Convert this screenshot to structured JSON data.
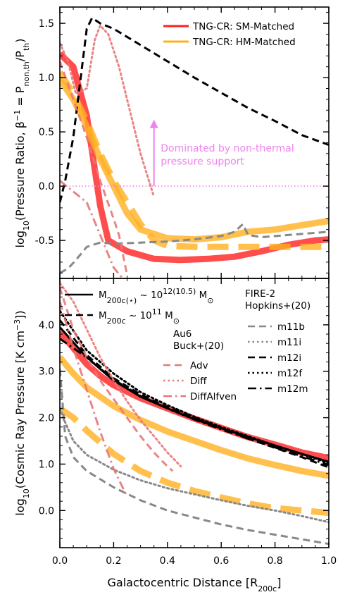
{
  "chart_data": [
    {
      "type": "line",
      "panel": "top",
      "xlabel": "",
      "ylabel": "log$_{10}$(Pressure Ratio, $\\beta^{-1}$ = P$_{\\rm non,th}$/P$_{\\rm th}$)",
      "ylabel_parts": [
        "log",
        "10",
        "(Pressure Ratio, ",
        "β",
        "−1",
        " = P",
        "non,th",
        "/P",
        "th",
        ")"
      ],
      "xlim": [
        0,
        1.0
      ],
      "ylim": [
        -0.85,
        1.65
      ],
      "yticks": [
        -0.5,
        0.0,
        0.5,
        1.0,
        1.5
      ],
      "ytick_labels": [
        "-0.5",
        "0.0",
        "0.5",
        "1.0",
        "1.5"
      ],
      "annotation": {
        "lines": [
          "Dominated by non-thermal",
          "pressure support"
        ],
        "color": "#ee82ee",
        "arrow_x": 0.35,
        "arrow_y": [
          0.0,
          0.6
        ],
        "text_x": 0.375,
        "text_y": [
          0.32,
          0.2
        ]
      },
      "reference_line": {
        "y": 0.0,
        "color": "#ee82ee",
        "style": "dotted"
      },
      "legend": {
        "placement": "top-right",
        "entries": [
          {
            "label": "TNG-CR: SM-Matched",
            "color": "#ff2020"
          },
          {
            "label": "TNG-CR: HM-Matched",
            "color": "#ffb020"
          }
        ]
      },
      "series": [
        {
          "name": "",
          "color": "#ff2020",
          "opacity": 0.8,
          "width": 9,
          "style": "solid",
          "x": [
            0.0,
            0.05,
            0.1,
            0.15,
            0.18,
            0.25,
            0.35,
            0.45,
            0.55,
            0.65,
            0.75,
            0.85,
            0.95,
            1.0
          ],
          "y": [
            1.22,
            1.1,
            0.65,
            -0.18,
            -0.5,
            -0.6,
            -0.67,
            -0.68,
            -0.67,
            -0.65,
            -0.6,
            -0.54,
            -0.5,
            -0.49
          ]
        },
        {
          "name": "",
          "color": "#ffb020",
          "opacity": 0.8,
          "width": 9,
          "style": "solid",
          "x": [
            0.0,
            0.05,
            0.1,
            0.15,
            0.2,
            0.25,
            0.3,
            0.35,
            0.4,
            0.5,
            0.6,
            0.7,
            0.8,
            0.9,
            1.0
          ],
          "y": [
            0.98,
            0.8,
            0.55,
            0.25,
            0.0,
            -0.25,
            -0.4,
            -0.44,
            -0.48,
            -0.49,
            -0.47,
            -0.42,
            -0.4,
            -0.36,
            -0.32
          ]
        },
        {
          "name": "",
          "color": "#ffb020",
          "opacity": 0.8,
          "width": 9,
          "style": "dashed",
          "x": [
            0.0,
            0.05,
            0.1,
            0.15,
            0.2,
            0.25,
            0.3,
            0.35,
            0.4,
            0.5,
            0.6,
            0.7,
            0.8,
            0.9,
            1.0
          ],
          "y": [
            1.05,
            0.85,
            0.6,
            0.3,
            0.05,
            -0.15,
            -0.35,
            -0.5,
            -0.55,
            -0.56,
            -0.56,
            -0.56,
            -0.56,
            -0.56,
            -0.56
          ]
        },
        {
          "name": "",
          "color": "#000000",
          "opacity": 1.0,
          "width": 3,
          "style": "dashed",
          "x": [
            0.0,
            0.02,
            0.05,
            0.08,
            0.1,
            0.12,
            0.15,
            0.2,
            0.3,
            0.4,
            0.5,
            0.6,
            0.7,
            0.8,
            0.9,
            1.0
          ],
          "y": [
            -0.15,
            0.05,
            0.45,
            1.05,
            1.45,
            1.55,
            1.5,
            1.45,
            1.3,
            1.15,
            1.0,
            0.86,
            0.72,
            0.6,
            0.47,
            0.38
          ]
        },
        {
          "name": "",
          "color": "#888888",
          "opacity": 1.0,
          "width": 3,
          "style": "dashed",
          "x": [
            0.0,
            0.03,
            0.06,
            0.1,
            0.15,
            0.2,
            0.3,
            0.4,
            0.5,
            0.6,
            0.65,
            0.68,
            0.7,
            0.75,
            0.85,
            1.0
          ],
          "y": [
            -0.8,
            -0.76,
            -0.68,
            -0.56,
            -0.52,
            -0.53,
            -0.52,
            -0.51,
            -0.49,
            -0.46,
            -0.42,
            -0.35,
            -0.45,
            -0.47,
            -0.45,
            -0.42
          ]
        },
        {
          "name": "",
          "color": "#e87878",
          "opacity": 0.9,
          "width": 3,
          "style": "dotted",
          "x": [
            0.0,
            0.03,
            0.06,
            0.1,
            0.13,
            0.15,
            0.18,
            0.22,
            0.26,
            0.3,
            0.35
          ],
          "y": [
            1.32,
            1.15,
            0.85,
            0.9,
            1.35,
            1.48,
            1.4,
            1.1,
            0.7,
            0.3,
            -0.1
          ]
        },
        {
          "name": "",
          "color": "#e87878",
          "opacity": 0.9,
          "width": 3,
          "style": "dashed",
          "x": [
            0.0,
            0.05,
            0.1,
            0.15,
            0.2,
            0.22,
            0.25
          ],
          "y": [
            1.15,
            0.8,
            0.45,
            0.05,
            -0.3,
            -0.45,
            -0.82
          ]
        },
        {
          "name": "",
          "color": "#e87878",
          "opacity": 0.9,
          "width": 3,
          "style": "dashdot",
          "x": [
            0.0,
            0.05,
            0.1,
            0.15,
            0.2,
            0.25
          ],
          "y": [
            0.05,
            -0.05,
            -0.15,
            -0.45,
            -0.75,
            -0.9
          ]
        }
      ]
    },
    {
      "type": "line",
      "panel": "bottom",
      "xlabel": "Galactocentric Distance [R$_{\\rm 200c}$]",
      "xlabel_parts": [
        "Galactocentric Distance [R",
        "200c",
        "]"
      ],
      "ylabel": "log$_{10}$(Cosmic Ray Pressure [K cm$^{-3}$])",
      "ylabel_parts": [
        "log",
        "10",
        "(Cosmic Ray Pressure [K cm",
        "−3",
        "])"
      ],
      "xlim": [
        0,
        1.0
      ],
      "ylim": [
        -0.8,
        5.0
      ],
      "xticks": [
        0.0,
        0.2,
        0.4,
        0.6,
        0.8,
        1.0
      ],
      "xtick_labels": [
        "0.0",
        "0.2",
        "0.4",
        "0.6",
        "0.8",
        "1.0"
      ],
      "yticks": [
        0.0,
        1.0,
        2.0,
        3.0,
        4.0
      ],
      "ytick_labels": [
        "0.0",
        "1.0",
        "2.0",
        "3.0",
        "4.0"
      ],
      "legend_mass": {
        "placement": "top-left",
        "entries": [
          {
            "style": "solid",
            "label_parts": [
              "M",
              "200c(⋆)",
              " ~ 10",
              "12(10.5)",
              " M",
              "⊙"
            ]
          },
          {
            "style": "dashed",
            "label_parts": [
              "M",
              "200c",
              " ~ 10",
              "11",
              " M",
              "⊙"
            ]
          }
        ]
      },
      "legend_au6": {
        "placement": "upper-center",
        "title": [
          "Au6",
          "Buck+(20)"
        ],
        "entries": [
          {
            "label": "Adv",
            "style": "dashed",
            "color": "#e87878"
          },
          {
            "label": "Diff",
            "style": "dotted",
            "color": "#e87878"
          },
          {
            "label": "DiffAlfven",
            "style": "dashdot",
            "color": "#e87878"
          }
        ]
      },
      "legend_fire": {
        "placement": "top-right",
        "title": [
          "FIRE-2",
          "Hopkins+(20)"
        ],
        "entries": [
          {
            "label": "m11b",
            "style": "dashed",
            "color": "#888888"
          },
          {
            "label": "m11i",
            "style": "dotted",
            "color": "#888888"
          },
          {
            "label": "m12i",
            "style": "dashed",
            "color": "#000000"
          },
          {
            "label": "m12f",
            "style": "dotted",
            "color": "#000000"
          },
          {
            "label": "m12m",
            "style": "dashdot",
            "color": "#000000"
          }
        ]
      },
      "series": [
        {
          "name": "",
          "color": "#ff2020",
          "opacity": 0.8,
          "width": 9,
          "style": "solid",
          "x": [
            0.0,
            0.05,
            0.1,
            0.15,
            0.2,
            0.3,
            0.4,
            0.5,
            0.6,
            0.7,
            0.8,
            0.9,
            1.0
          ],
          "y": [
            3.85,
            3.5,
            3.15,
            2.9,
            2.7,
            2.42,
            2.2,
            1.98,
            1.78,
            1.58,
            1.42,
            1.25,
            1.13
          ]
        },
        {
          "name": "",
          "color": "#ffb020",
          "opacity": 0.8,
          "width": 9,
          "style": "solid",
          "x": [
            0.0,
            0.05,
            0.1,
            0.2,
            0.3,
            0.4,
            0.5,
            0.6,
            0.7,
            0.8,
            0.9,
            1.0
          ],
          "y": [
            3.3,
            2.95,
            2.65,
            2.25,
            1.95,
            1.7,
            1.5,
            1.3,
            1.12,
            0.98,
            0.85,
            0.75
          ]
        },
        {
          "name": "",
          "color": "#ffb020",
          "opacity": 0.8,
          "width": 9,
          "style": "dashed",
          "x": [
            0.0,
            0.05,
            0.1,
            0.2,
            0.3,
            0.4,
            0.5,
            0.6,
            0.7,
            0.8,
            0.9,
            1.0
          ],
          "y": [
            2.2,
            2.0,
            1.72,
            1.22,
            0.85,
            0.6,
            0.42,
            0.28,
            0.15,
            0.05,
            0.0,
            -0.05
          ]
        },
        {
          "name": "",
          "color": "#000000",
          "opacity": 1.0,
          "width": 3,
          "style": "solid",
          "x": [
            0.0,
            0.1,
            0.2,
            0.3,
            0.4,
            0.5,
            0.6,
            0.7,
            0.8,
            0.9,
            1.0
          ],
          "y": [
            3.95,
            3.3,
            2.8,
            2.45,
            2.2,
            1.97,
            1.77,
            1.58,
            1.4,
            1.22,
            1.05
          ]
        },
        {
          "name": "",
          "color": "#000000",
          "opacity": 1.0,
          "width": 3,
          "style": "dashed",
          "x": [
            0.0,
            0.1,
            0.2,
            0.3,
            0.4,
            0.5,
            0.6,
            0.7,
            0.8,
            0.9,
            1.0
          ],
          "y": [
            4.1,
            3.35,
            2.85,
            2.5,
            2.23,
            2.0,
            1.78,
            1.55,
            1.35,
            1.15,
            0.93
          ]
        },
        {
          "name": "",
          "color": "#000000",
          "opacity": 1.0,
          "width": 3,
          "style": "dotted",
          "x": [
            0.0,
            0.1,
            0.2,
            0.3,
            0.4,
            0.5,
            0.6,
            0.7,
            0.8,
            0.9,
            1.0
          ],
          "y": [
            4.3,
            3.45,
            2.95,
            2.55,
            2.27,
            2.02,
            1.8,
            1.6,
            1.4,
            1.22,
            1.02
          ]
        },
        {
          "name": "",
          "color": "#000000",
          "opacity": 1.0,
          "width": 3,
          "style": "dashdot",
          "x": [
            0.0,
            0.1,
            0.2,
            0.3,
            0.4,
            0.5,
            0.6,
            0.7,
            0.8,
            0.9,
            1.0
          ],
          "y": [
            3.7,
            3.3,
            2.82,
            2.47,
            2.2,
            1.96,
            1.75,
            1.55,
            1.36,
            1.17,
            0.98
          ]
        },
        {
          "name": "",
          "color": "#888888",
          "opacity": 1.0,
          "width": 3,
          "style": "dashed",
          "x": [
            0.0,
            0.02,
            0.05,
            0.1,
            0.2,
            0.3,
            0.4,
            0.5,
            0.6,
            0.7,
            0.8,
            0.9,
            1.0
          ],
          "y": [
            3.05,
            1.6,
            1.15,
            0.85,
            0.5,
            0.22,
            0.0,
            -0.15,
            -0.3,
            -0.42,
            -0.52,
            -0.62,
            -0.72
          ]
        },
        {
          "name": "",
          "color": "#888888",
          "opacity": 1.0,
          "width": 3,
          "style": "dotted",
          "x": [
            0.0,
            0.02,
            0.05,
            0.1,
            0.2,
            0.3,
            0.4,
            0.5,
            0.6,
            0.7,
            0.8,
            0.9,
            1.0
          ],
          "y": [
            2.2,
            1.9,
            1.5,
            1.2,
            0.88,
            0.65,
            0.48,
            0.35,
            0.22,
            0.1,
            0.0,
            -0.12,
            -0.25
          ]
        },
        {
          "name": "",
          "color": "#e87878",
          "opacity": 0.9,
          "width": 3,
          "style": "dashed",
          "x": [
            0.0,
            0.05,
            0.1,
            0.15,
            0.2,
            0.25,
            0.3,
            0.35,
            0.4,
            0.42
          ],
          "y": [
            4.8,
            3.9,
            3.3,
            2.8,
            2.4,
            2.0,
            1.6,
            1.25,
            0.95,
            0.85
          ]
        },
        {
          "name": "",
          "color": "#e87878",
          "opacity": 0.9,
          "width": 3,
          "style": "dotted",
          "x": [
            0.0,
            0.05,
            0.1,
            0.15,
            0.2,
            0.25,
            0.3,
            0.35,
            0.4,
            0.45
          ],
          "y": [
            4.9,
            4.5,
            3.9,
            3.3,
            2.8,
            2.35,
            1.95,
            1.6,
            1.25,
            0.95
          ]
        },
        {
          "name": "",
          "color": "#e87878",
          "opacity": 0.9,
          "width": 3,
          "style": "dashdot",
          "x": [
            0.0,
            0.05,
            0.1,
            0.15,
            0.2,
            0.25
          ],
          "y": [
            4.5,
            3.5,
            2.6,
            1.7,
            0.9,
            0.3
          ]
        }
      ]
    }
  ]
}
